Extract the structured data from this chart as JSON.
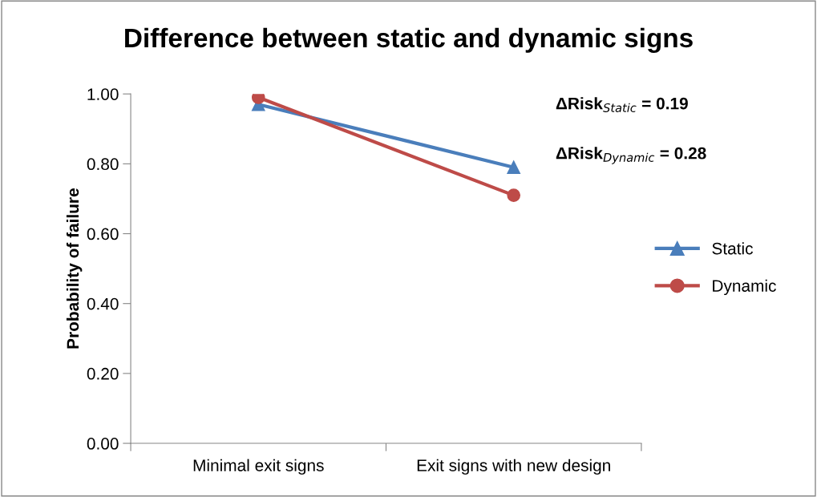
{
  "chart_data": {
    "type": "line",
    "title": "Difference between static and dynamic signs",
    "ylabel": "Probability of failure",
    "categories": [
      "Minimal exit signs",
      "Exit signs with new design"
    ],
    "series": [
      {
        "name": "Static",
        "color": "#4a7ebb",
        "marker": "triangle",
        "values": [
          0.97,
          0.79
        ]
      },
      {
        "name": "Dynamic",
        "color": "#be4b48",
        "marker": "circle",
        "values": [
          0.99,
          0.71
        ]
      }
    ],
    "ylim": [
      0,
      1
    ],
    "yticks": [
      {
        "value": 0,
        "label": "0.00"
      },
      {
        "value": 0.2,
        "label": "0.20"
      },
      {
        "value": 0.4,
        "label": "0.40"
      },
      {
        "value": 0.6,
        "label": "0.60"
      },
      {
        "value": 0.8,
        "label": "0.80"
      },
      {
        "value": 1,
        "label": "1.00"
      }
    ],
    "annotations": [
      "ΔRisk$_{Static}$ = 0.19",
      "ΔRisk$_{Dynamic}$ = 0.28"
    ],
    "grid": false,
    "legend": "right"
  }
}
